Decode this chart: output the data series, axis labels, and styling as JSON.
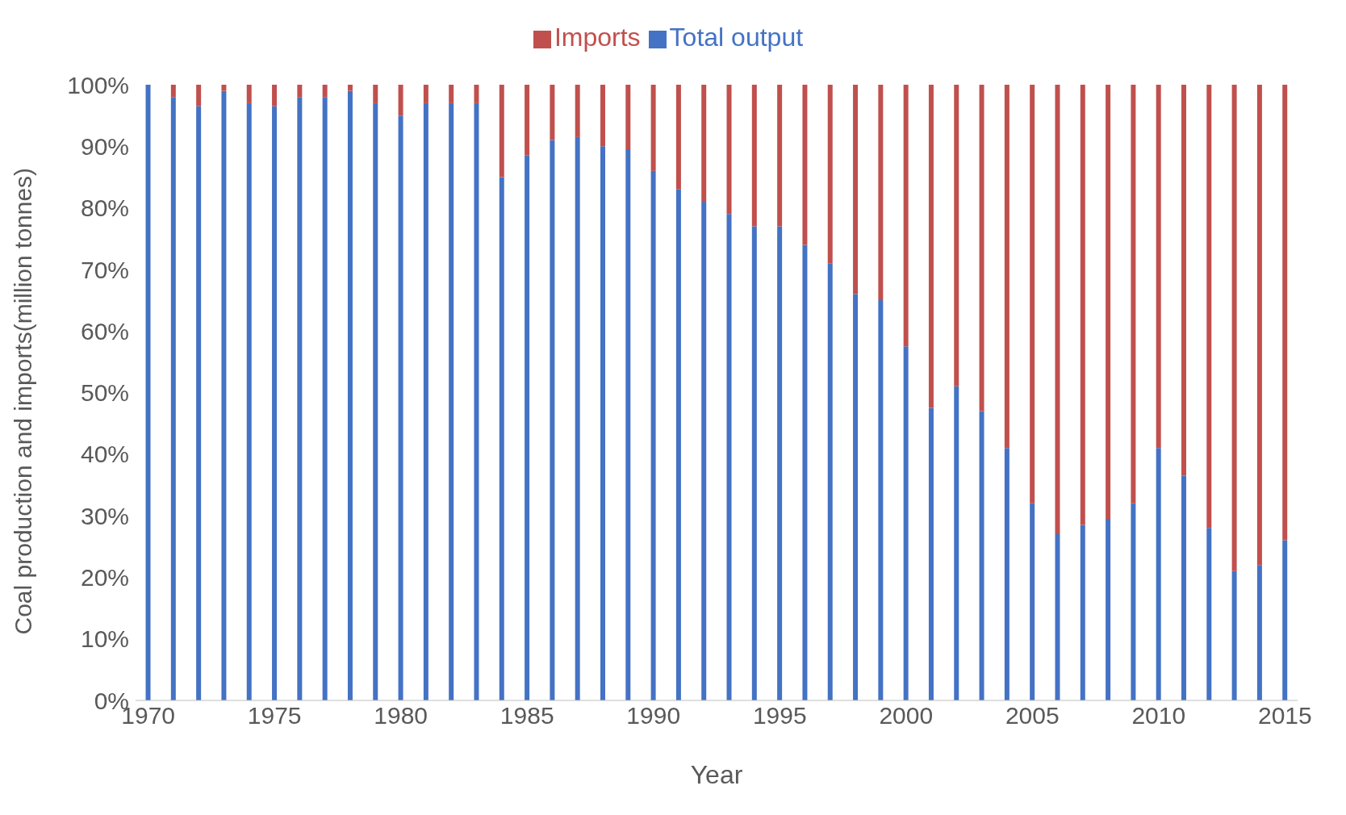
{
  "chart_data": {
    "type": "bar",
    "stacked": true,
    "xlabel": "Year",
    "ylabel": "Coal production and imports(million tonnes)",
    "categories": [
      "1970",
      null,
      null,
      null,
      null,
      "1975",
      null,
      null,
      null,
      null,
      "1980",
      null,
      null,
      null,
      null,
      "1985",
      null,
      null,
      null,
      null,
      "1990",
      null,
      null,
      null,
      null,
      "1995",
      null,
      null,
      null,
      null,
      "2000",
      null,
      null,
      null,
      null,
      "2005",
      null,
      null,
      null,
      null,
      "2010",
      null,
      null,
      null,
      null,
      "2015"
    ],
    "series": [
      {
        "name": "Total output",
        "color": "#4472c4",
        "values": [
          100,
          98,
          96.5,
          99,
          97,
          96.5,
          98,
          98,
          99,
          97,
          95,
          97,
          97,
          97,
          85,
          88.5,
          91,
          91.5,
          90,
          89.5,
          86,
          83,
          81,
          79,
          77,
          77,
          74,
          71,
          66,
          65,
          57.5,
          47.5,
          51,
          47,
          41,
          32,
          27,
          28.5,
          29.5,
          32,
          41,
          36.5,
          28,
          21,
          22,
          26
        ]
      },
      {
        "name": "Imports",
        "color": "#c0504d",
        "values": [
          0,
          2,
          3.5,
          1,
          3,
          3.5,
          2,
          2,
          1,
          3,
          5,
          3,
          3,
          3,
          15,
          11.5,
          9,
          8.5,
          10,
          10.5,
          14,
          17,
          19,
          21,
          23,
          23,
          26,
          29,
          34,
          35,
          42.5,
          52.5,
          49,
          53,
          59,
          68,
          73,
          71.5,
          70.5,
          68,
          59,
          63.5,
          72,
          79,
          78,
          74
        ]
      }
    ],
    "ylim": [
      0,
      100
    ],
    "yticks": [
      {
        "value": 0,
        "label": "0%"
      },
      {
        "value": 10,
        "label": "10%"
      },
      {
        "value": 20,
        "label": "20%"
      },
      {
        "value": 30,
        "label": "30%"
      },
      {
        "value": 40,
        "label": "40%"
      },
      {
        "value": 50,
        "label": "50%"
      },
      {
        "value": 60,
        "label": "60%"
      },
      {
        "value": 70,
        "label": "70%"
      },
      {
        "value": 80,
        "label": "80%"
      },
      {
        "value": 90,
        "label": "90%"
      },
      {
        "value": 100,
        "label": "100%"
      }
    ],
    "grid": false,
    "legend": "top"
  }
}
